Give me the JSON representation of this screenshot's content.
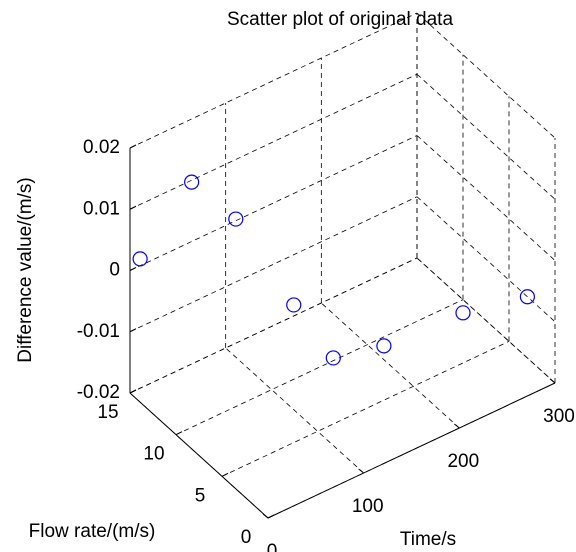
{
  "chart_data": {
    "type": "scatter3d",
    "title": "Scatter plot of original data",
    "xlabel": "Time/s",
    "ylabel": "Flow rate/(m/s)",
    "zlabel": "Difference value/(m/s)",
    "x": [
      0,
      50,
      50,
      100,
      100,
      150,
      250,
      300
    ],
    "y": [
      13.9,
      13.5,
      8.7,
      7.6,
      3.3,
      3.0,
      4.8,
      3.0
    ],
    "z": [
      0.0034,
      0.0128,
      0.0133,
      -0.0029,
      -0.0057,
      -0.007,
      -0.0114,
      -0.01
    ],
    "color": "#0000ff",
    "xlim": [
      0,
      300
    ],
    "ylim": [
      0,
      15
    ],
    "zlim": [
      -0.02,
      0.02
    ],
    "xticks": [
      0,
      100,
      200,
      300
    ],
    "yticks": [
      0,
      5,
      10,
      15
    ],
    "zticks": [
      -0.02,
      -0.01,
      0,
      0.01,
      0.02
    ],
    "grid": true
  }
}
